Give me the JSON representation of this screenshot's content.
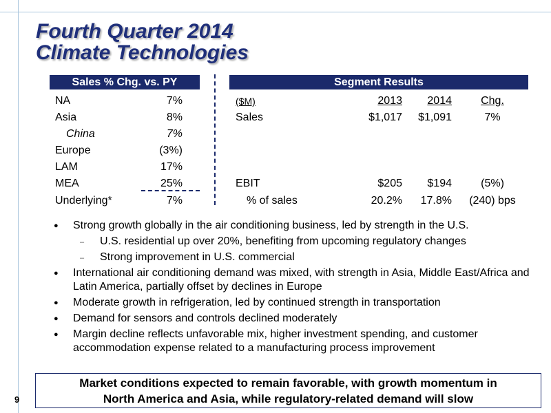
{
  "title": {
    "line1": "Fourth Quarter 2014",
    "line2": "Climate Technologies"
  },
  "sales_table": {
    "header": "Sales % Chg. vs. PY",
    "rows": [
      {
        "region": "NA",
        "value": "7%"
      },
      {
        "region": "Asia",
        "value": "8%"
      },
      {
        "region": "China",
        "value": "7%"
      },
      {
        "region": "Europe",
        "value": "(3%)"
      },
      {
        "region": "LAM",
        "value": "17%"
      },
      {
        "region": "MEA",
        "value": "25%"
      },
      {
        "region": "Underlying*",
        "value": "7%"
      }
    ]
  },
  "segment_table": {
    "header": "Segment Results",
    "unit": "($M)",
    "col_2013": "2013",
    "col_2014": "2014",
    "col_chg": "Chg.",
    "sales": {
      "label": "Sales",
      "v2013": "$1,017",
      "v2014": "$1,091",
      "chg": "7%"
    },
    "ebit": {
      "label": "EBIT",
      "v2013": "$205",
      "v2014": "$194",
      "chg": "(5%)"
    },
    "pct": {
      "label": "% of sales",
      "v2013": "20.2%",
      "v2014": "17.8%",
      "chg": "(240) bps"
    }
  },
  "bullets": [
    {
      "text": "Strong growth globally in the air conditioning business, led by strength in the U.S."
    },
    {
      "text": "U.S. residential up over 20%, benefiting from upcoming regulatory changes"
    },
    {
      "text": "Strong improvement in U.S. commercial"
    },
    {
      "text": "International air conditioning demand was mixed, with strength in Asia, Middle East/Africa and Latin America, partially offset by declines in Europe"
    },
    {
      "text": "Moderate growth in refrigeration, led by continued strength in transportation"
    },
    {
      "text": "Demand for sensors and controls declined moderately"
    },
    {
      "text": "Margin decline reflects unfavorable mix, higher investment spending, and customer accommodation expense related to a manufacturing process improvement"
    }
  ],
  "callout": {
    "line1": "Market conditions expected to remain favorable, with growth momentum in",
    "line2": "North America and Asia, while regulatory-related demand will slow"
  },
  "page_number": "9",
  "colors": {
    "navy": "#1b2a6b",
    "title_blue": "#1f2f7a"
  }
}
